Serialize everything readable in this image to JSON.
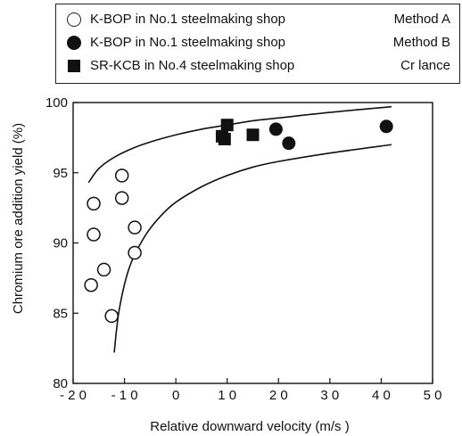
{
  "legend": [
    {
      "marker": "open-circle",
      "label": "K-BOP in No.1 steelmaking shop",
      "method": "Method A"
    },
    {
      "marker": "filled-circle",
      "label": "K-BOP in No.1 steelmaking shop",
      "method": "Method B"
    },
    {
      "marker": "filled-square",
      "label": "SR-KCB in No.4 steelmaking shop",
      "method": "Cr lance"
    }
  ],
  "chart_data": {
    "type": "scatter",
    "xlabel": "Relative downward velocity (m/s )",
    "ylabel": "Chromium ore addition yield (%)",
    "xlim": [
      -20,
      50
    ],
    "ylim": [
      80,
      100
    ],
    "x_ticks": [
      -20,
      -10,
      0,
      10,
      20,
      30,
      40,
      50
    ],
    "x_tick_labels": [
      "- 2 0",
      "- 1 0",
      "0",
      "1 0",
      "2 0",
      "3 0",
      "4 0",
      "5 0"
    ],
    "y_ticks": [
      80,
      85,
      90,
      95,
      100
    ],
    "y_tick_labels": [
      "80",
      "85",
      "90",
      "95",
      "100"
    ],
    "grid": false,
    "series": [
      {
        "name": "K-BOP in No.1 steelmaking shop Method A",
        "marker": "open-circle",
        "x": [
          -16.5,
          -16,
          -16,
          -14,
          -12.5,
          -10.5,
          -10.5,
          -8,
          -8
        ],
        "y": [
          87,
          90.6,
          92.8,
          88.1,
          84.8,
          93.2,
          94.8,
          91.1,
          89.3
        ]
      },
      {
        "name": "K-BOP in No.1 steelmaking shop Method B",
        "marker": "filled-circle",
        "x": [
          19.5,
          22,
          41
        ],
        "y": [
          98.1,
          97.1,
          98.3
        ]
      },
      {
        "name": "SR-KCB in No.4 steelmaking shop Cr lance",
        "marker": "filled-square",
        "x": [
          9,
          9.5,
          10,
          15
        ],
        "y": [
          97.6,
          97.4,
          98.4,
          97.7
        ]
      }
    ],
    "envelope_curves": [
      {
        "x": [
          -17,
          -15,
          -12,
          -8,
          -4,
          0,
          5,
          10,
          15,
          20,
          30,
          42
        ],
        "y": [
          94.3,
          95.3,
          96.1,
          96.8,
          97.3,
          97.7,
          98.1,
          98.4,
          98.7,
          98.9,
          99.3,
          99.7
        ]
      },
      {
        "x": [
          -12,
          -11,
          -9,
          -6,
          -3,
          0,
          5,
          10,
          15,
          20,
          30,
          42
        ],
        "y": [
          82.2,
          85.3,
          88.3,
          90.5,
          91.9,
          92.9,
          94.0,
          94.8,
          95.4,
          95.8,
          96.4,
          97.0
        ]
      }
    ]
  }
}
